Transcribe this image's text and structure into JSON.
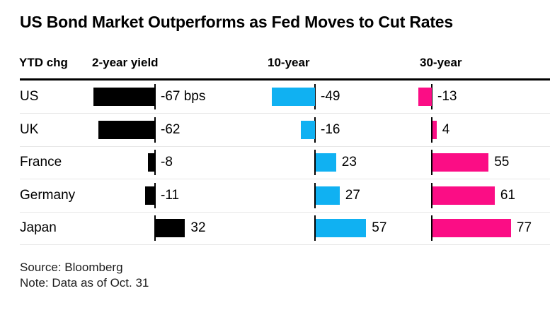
{
  "title": "US Bond Market Outperforms as Fed Moves to Cut Rates",
  "header": {
    "ytd_label": "YTD chg",
    "col_2yr": "2-year yield",
    "col_10yr": "10-year",
    "col_30yr": "30-year"
  },
  "chart_data": {
    "type": "bar",
    "orientation": "horizontal",
    "unit": "bps",
    "baseline": 0,
    "grid": false,
    "legend_position": "column-headers",
    "categories": [
      "US",
      "UK",
      "France",
      "Germany",
      "Japan"
    ],
    "series": [
      {
        "name": "2-year yield",
        "color": "#000000",
        "values": [
          -67,
          -62,
          -8,
          -11,
          32
        ],
        "value_labels": [
          "-67 bps",
          "-62",
          "-8",
          "-11",
          "32"
        ]
      },
      {
        "name": "10-year",
        "color": "#10b1f2",
        "values": [
          -49,
          -16,
          23,
          27,
          57
        ],
        "value_labels": [
          "-49",
          "-16",
          "23",
          "27",
          "57"
        ]
      },
      {
        "name": "30-year",
        "color": "#fb0d85",
        "values": [
          -13,
          4,
          55,
          61,
          77
        ],
        "value_labels": [
          "-13",
          "4",
          "55",
          "61",
          "77"
        ]
      }
    ]
  },
  "footer": {
    "source": "Source: Bloomberg",
    "note": "Note: Data as of Oct. 31"
  },
  "colors": {
    "bar_black": "#000000",
    "bar_cyan": "#10b1f2",
    "bar_magenta": "#fb0d85",
    "separator": "#e7e7e7",
    "rule": "#000000"
  }
}
